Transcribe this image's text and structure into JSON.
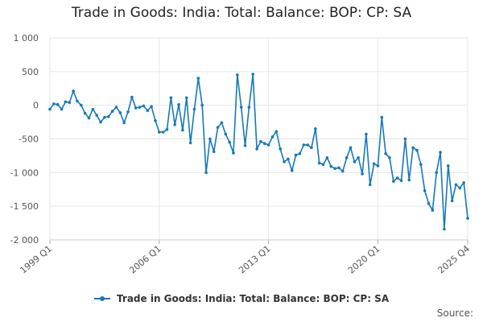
{
  "chart_data": {
    "type": "line",
    "title": "Trade in Goods: India: Total: Balance: BOP: CP: SA",
    "xlabel": "",
    "ylabel": "",
    "ylim": [
      -2000,
      1000
    ],
    "yticks": [
      1000,
      500,
      0,
      -500,
      -1000,
      -1500,
      -2000
    ],
    "ytick_labels": [
      "1 000",
      "500",
      "0",
      "-500",
      "-1 000",
      "-1 500",
      "-2 000"
    ],
    "xtick_labels": [
      "1999 Q1",
      "2006 Q1",
      "2013 Q1",
      "2020 Q1",
      "2025 Q4"
    ],
    "xtick_positions": [
      0,
      28,
      56,
      84,
      107
    ],
    "grid": true,
    "legend": "bottom-center",
    "color": "#1679b8",
    "series": [
      {
        "name": "Trade in Goods: India: Total: Balance: BOP: CP: SA",
        "values": [
          -60,
          20,
          10,
          -60,
          50,
          40,
          210,
          60,
          0,
          -120,
          -190,
          -60,
          -150,
          -250,
          -180,
          -170,
          -90,
          -30,
          -110,
          -260,
          -100,
          120,
          -40,
          -30,
          -10,
          -80,
          -20,
          -230,
          -400,
          -400,
          -360,
          110,
          -290,
          10,
          -370,
          110,
          -560,
          -60,
          400,
          0,
          -1000,
          -500,
          -690,
          -330,
          -260,
          -430,
          -550,
          -710,
          450,
          -30,
          -600,
          -30,
          460,
          -650,
          -540,
          -570,
          -590,
          -470,
          -390,
          -650,
          -840,
          -800,
          -970,
          -740,
          -720,
          -590,
          -590,
          -630,
          -350,
          -860,
          -880,
          -780,
          -910,
          -940,
          -930,
          -980,
          -780,
          -630,
          -840,
          -780,
          -1020,
          -430,
          -1180,
          -870,
          -900,
          -180,
          -720,
          -780,
          -1130,
          -1080,
          -1120,
          -500,
          -1110,
          -630,
          -670,
          -880,
          -1270,
          -1460,
          -1560,
          -1000,
          -700,
          -1840,
          -900,
          -1420,
          -1180,
          -1230,
          -1150,
          -1680
        ]
      }
    ]
  },
  "source_label": "Source:"
}
